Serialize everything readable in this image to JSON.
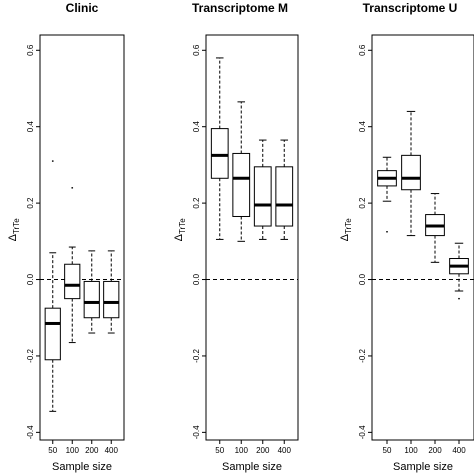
{
  "chart_data": [
    {
      "type": "boxplot",
      "title": "Clinic",
      "xlabel": "Sample size",
      "ylabel": "Δ",
      "ylabel_sub": "TrTe",
      "ylim": [
        -0.42,
        0.64
      ],
      "yticks": [
        "-0.4",
        "-0.2",
        "0.0",
        "0.2",
        "0.4",
        "0.6"
      ],
      "ytick_values": [
        -0.4,
        -0.2,
        0.0,
        0.2,
        0.4,
        0.6
      ],
      "reference_line": 0.0,
      "categories": [
        "50",
        "100",
        "200",
        "400"
      ],
      "boxes": [
        {
          "min": -0.345,
          "q1": -0.21,
          "median": -0.115,
          "q3": -0.075,
          "max": 0.07,
          "outliers": [
            0.31
          ]
        },
        {
          "min": -0.165,
          "q1": -0.05,
          "median": -0.015,
          "q3": 0.04,
          "max": 0.085,
          "outliers": [
            0.24
          ]
        },
        {
          "min": -0.14,
          "q1": -0.1,
          "median": -0.06,
          "q3": -0.005,
          "max": 0.075,
          "outliers": []
        },
        {
          "min": -0.14,
          "q1": -0.1,
          "median": -0.06,
          "q3": -0.005,
          "max": 0.075,
          "outliers": []
        }
      ]
    },
    {
      "type": "boxplot",
      "title": "Transcriptome M",
      "xlabel": "Sample size",
      "ylabel": "Δ",
      "ylabel_sub": "TrTe",
      "ylim": [
        -0.42,
        0.64
      ],
      "yticks": [
        "-0.4",
        "-0.2",
        "0.0",
        "0.2",
        "0.4",
        "0.6"
      ],
      "ytick_values": [
        -0.4,
        -0.2,
        0.0,
        0.2,
        0.4,
        0.6
      ],
      "reference_line": 0.0,
      "categories": [
        "50",
        "100",
        "200",
        "400"
      ],
      "boxes": [
        {
          "min": 0.105,
          "q1": 0.265,
          "median": 0.325,
          "q3": 0.395,
          "max": 0.58,
          "outliers": []
        },
        {
          "min": 0.1,
          "q1": 0.165,
          "median": 0.265,
          "q3": 0.33,
          "max": 0.465,
          "outliers": []
        },
        {
          "min": 0.105,
          "q1": 0.14,
          "median": 0.195,
          "q3": 0.295,
          "max": 0.365,
          "outliers": []
        },
        {
          "min": 0.105,
          "q1": 0.14,
          "median": 0.195,
          "q3": 0.295,
          "max": 0.365,
          "outliers": []
        }
      ]
    },
    {
      "type": "boxplot",
      "title": "Transcriptome U",
      "xlabel": "Sample size",
      "ylabel": "Δ",
      "ylabel_sub": "TrTe",
      "ylim": [
        -0.42,
        0.64
      ],
      "yticks": [
        "-0.4",
        "-0.2",
        "0.0",
        "0.2",
        "0.4",
        "0.6"
      ],
      "ytick_values": [
        -0.4,
        -0.2,
        0.0,
        0.2,
        0.4,
        0.6
      ],
      "reference_line": 0.0,
      "categories": [
        "50",
        "100",
        "200",
        "400"
      ],
      "boxes": [
        {
          "min": 0.205,
          "q1": 0.245,
          "median": 0.265,
          "q3": 0.285,
          "max": 0.32,
          "outliers": [
            0.125
          ]
        },
        {
          "min": 0.115,
          "q1": 0.235,
          "median": 0.265,
          "q3": 0.325,
          "max": 0.44,
          "outliers": []
        },
        {
          "min": 0.045,
          "q1": 0.115,
          "median": 0.14,
          "q3": 0.17,
          "max": 0.225,
          "outliers": []
        },
        {
          "min": -0.03,
          "q1": 0.015,
          "median": 0.035,
          "q3": 0.055,
          "max": 0.095,
          "outliers": [
            -0.05
          ]
        }
      ]
    }
  ]
}
